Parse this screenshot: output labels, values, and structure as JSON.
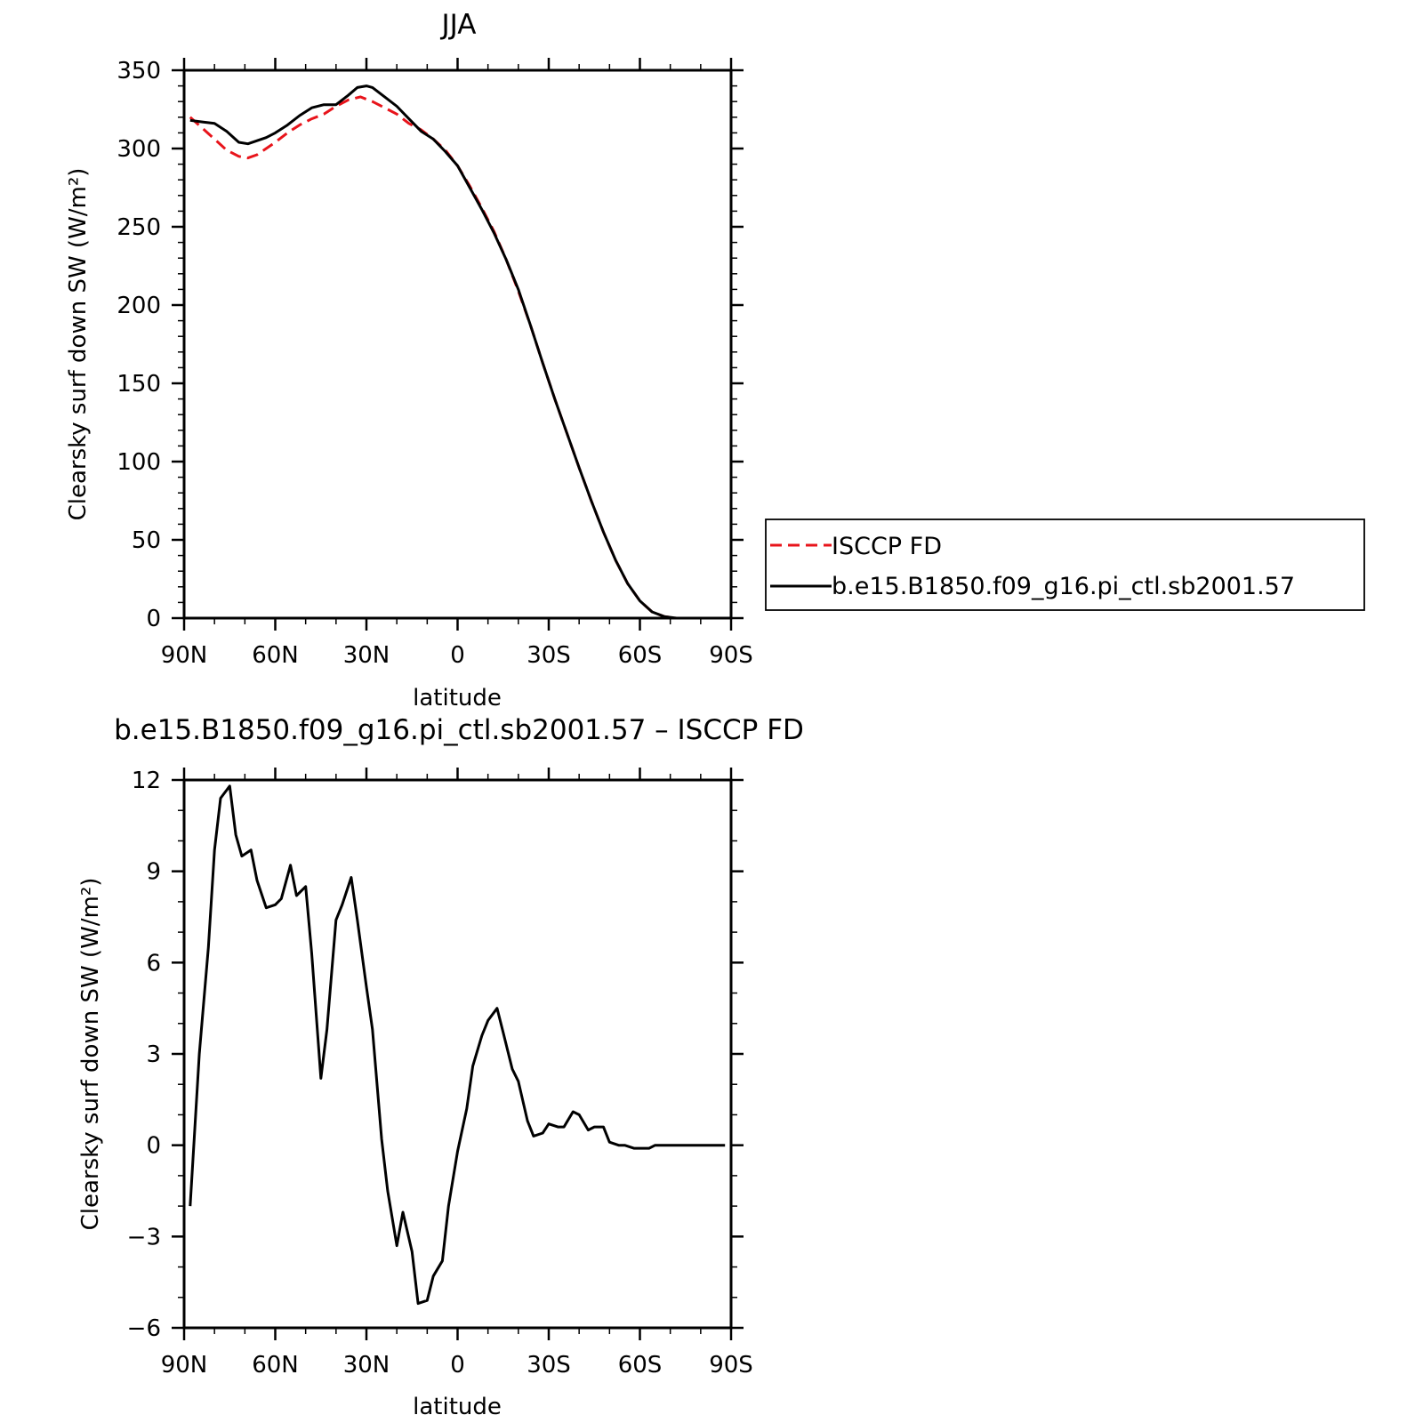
{
  "chart_data": [
    {
      "type": "line",
      "title": "JJA",
      "xlabel": "latitude",
      "ylabel": "Clearsky surf down SW (W/m²)",
      "xlim": [
        90,
        -90
      ],
      "ylim": [
        0,
        350
      ],
      "xticks": [
        {
          "value": 90,
          "label": "90N"
        },
        {
          "value": 60,
          "label": "60N"
        },
        {
          "value": 30,
          "label": "30N"
        },
        {
          "value": 0,
          "label": "0"
        },
        {
          "value": -30,
          "label": "30S"
        },
        {
          "value": -60,
          "label": "60S"
        },
        {
          "value": -90,
          "label": "90S"
        }
      ],
      "yticks": [
        0,
        50,
        100,
        150,
        200,
        250,
        300,
        350
      ],
      "legend": "right",
      "series": [
        {
          "name": "ISCCP FD",
          "color": "#e8141b",
          "style": "dashed",
          "x": [
            88,
            84,
            80,
            76,
            72,
            69,
            66,
            63,
            60,
            56,
            52,
            48,
            44,
            40,
            36,
            32,
            28,
            24,
            20,
            16,
            12,
            8,
            4,
            0,
            -4,
            -8,
            -12,
            -16,
            -20,
            -24,
            -28,
            -32,
            -36,
            -40,
            -44,
            -48,
            -52,
            -56,
            -60,
            -64,
            -68,
            -72,
            -76,
            -80,
            -84,
            -88
          ],
          "values": [
            320,
            313,
            306,
            299,
            295,
            294,
            296,
            300,
            304,
            310,
            315,
            319,
            322,
            327,
            331,
            333,
            330,
            326,
            322,
            316,
            312,
            306,
            299,
            289,
            276,
            262,
            247,
            229,
            209,
            187,
            163,
            140,
            118,
            96,
            75,
            55,
            37,
            22,
            11,
            4,
            1,
            0,
            0,
            0,
            0,
            0
          ]
        },
        {
          "name": "b.e15.B1850.f09_g16.pi_ctl.sb2001.57",
          "color": "#000000",
          "style": "solid",
          "x": [
            88,
            84,
            80,
            76,
            72,
            69,
            66,
            63,
            60,
            56,
            52,
            48,
            44,
            40,
            36,
            33,
            30,
            28,
            24,
            20,
            16,
            12,
            8,
            4,
            0,
            -4,
            -8,
            -12,
            -16,
            -20,
            -24,
            -28,
            -32,
            -36,
            -40,
            -44,
            -48,
            -52,
            -56,
            -60,
            -64,
            -68,
            -72,
            -76,
            -80,
            -84,
            -88
          ],
          "values": [
            318,
            317,
            316,
            311,
            304,
            303,
            305,
            307,
            310,
            315,
            321,
            326,
            328,
            328,
            334,
            339,
            340,
            339,
            333,
            327,
            319,
            311,
            306,
            298,
            289,
            275,
            261,
            246,
            229,
            210,
            187,
            163,
            140,
            118,
            96,
            75,
            55,
            37,
            22,
            11,
            4,
            1,
            0,
            0,
            0,
            0,
            0
          ]
        }
      ]
    },
    {
      "type": "line",
      "title": "b.e15.B1850.f09_g16.pi_ctl.sb2001.57 – ISCCP FD",
      "xlabel": "latitude",
      "ylabel": "Clearsky surf down SW (W/m²)",
      "xlim": [
        90,
        -90
      ],
      "ylim": [
        -6,
        12
      ],
      "xticks": [
        {
          "value": 90,
          "label": "90N"
        },
        {
          "value": 60,
          "label": "60N"
        },
        {
          "value": 30,
          "label": "30N"
        },
        {
          "value": 0,
          "label": "0"
        },
        {
          "value": -30,
          "label": "30S"
        },
        {
          "value": -60,
          "label": "60S"
        },
        {
          "value": -90,
          "label": "90S"
        }
      ],
      "yticks": [
        -6,
        -3,
        0,
        3,
        6,
        9,
        12
      ],
      "series": [
        {
          "color": "#000000",
          "style": "solid",
          "x": [
            88,
            85,
            82,
            80,
            78,
            75,
            73,
            71,
            68,
            66,
            63,
            60,
            58,
            55,
            53,
            50,
            48,
            45,
            43,
            40,
            38,
            35,
            33,
            30,
            28,
            25,
            23,
            20,
            18,
            15,
            13,
            10,
            8,
            5,
            3,
            0,
            -3,
            -5,
            -8,
            -10,
            -13,
            -15,
            -18,
            -20,
            -23,
            -25,
            -28,
            -30,
            -33,
            -35,
            -38,
            -40,
            -43,
            -45,
            -48,
            -50,
            -53,
            -55,
            -58,
            -60,
            -63,
            -65,
            -68,
            -70,
            -73,
            -75,
            -78,
            -80,
            -83,
            -85,
            -88
          ],
          "values": [
            -2.0,
            3.0,
            6.5,
            9.7,
            11.4,
            11.8,
            10.2,
            9.5,
            9.7,
            8.7,
            7.8,
            7.9,
            8.1,
            9.2,
            8.2,
            8.5,
            6.3,
            2.2,
            3.8,
            7.4,
            7.9,
            8.8,
            7.4,
            5.2,
            3.8,
            0.2,
            -1.5,
            -3.3,
            -2.2,
            -3.5,
            -5.2,
            -5.1,
            -4.3,
            -3.8,
            -2.0,
            -0.2,
            1.2,
            2.6,
            3.6,
            4.1,
            4.5,
            3.7,
            2.5,
            2.1,
            0.8,
            0.3,
            0.4,
            0.7,
            0.6,
            0.6,
            1.1,
            1.0,
            0.5,
            0.6,
            0.6,
            0.1,
            0.0,
            0.0,
            -0.1,
            -0.1,
            -0.1,
            0.0,
            0.0,
            0.0,
            0.0,
            0.0,
            0.0,
            0.0,
            0.0,
            0.0,
            0.0
          ]
        }
      ]
    }
  ]
}
